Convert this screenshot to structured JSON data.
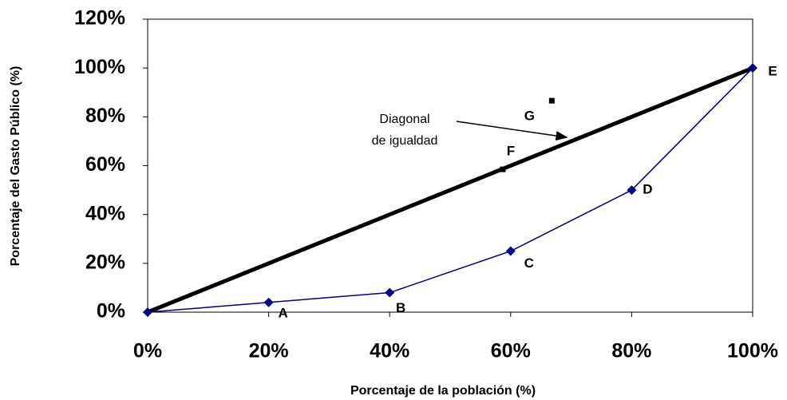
{
  "chart_data": {
    "type": "line",
    "xlabel": "Porcentaje de la población (%)",
    "ylabel": "Porcentaje del Gasto Público (%)",
    "annotation": [
      "Diagonal",
      "de igualdad"
    ],
    "xlim": [
      0,
      100
    ],
    "xticks": [
      {
        "value": 0,
        "label": "0%"
      },
      {
        "value": 20,
        "label": "20%"
      },
      {
        "value": 40,
        "label": "40%"
      },
      {
        "value": 60,
        "label": "60%"
      },
      {
        "value": 80,
        "label": "80%"
      },
      {
        "value": 100,
        "label": "100%"
      }
    ],
    "ylim": [
      0,
      120
    ],
    "yticks": [
      {
        "value": 0,
        "label": "0%"
      },
      {
        "value": 20,
        "label": "20%"
      },
      {
        "value": 40,
        "label": "40%"
      },
      {
        "value": 60,
        "label": "60%"
      },
      {
        "value": 80,
        "label": "80%"
      },
      {
        "value": 100,
        "label": "100%"
      },
      {
        "value": 120,
        "label": "120%"
      }
    ],
    "series": [
      {
        "color": "#000000",
        "style": "line",
        "x": [
          0,
          100
        ],
        "values": [
          0,
          100
        ]
      },
      {
        "color": "#000080",
        "style": "line-marker",
        "x": [
          0,
          20,
          40,
          60,
          80,
          100
        ],
        "values": [
          0,
          4,
          8,
          25,
          50,
          100
        ],
        "labels": [
          null,
          "A",
          "B",
          "C",
          "D",
          "E"
        ]
      },
      {
        "color": "#000000",
        "style": "square",
        "x": [
          58.7,
          66.8
        ],
        "values": [
          58.5,
          86.6
        ],
        "labels": [
          "F",
          "G"
        ]
      }
    ]
  }
}
